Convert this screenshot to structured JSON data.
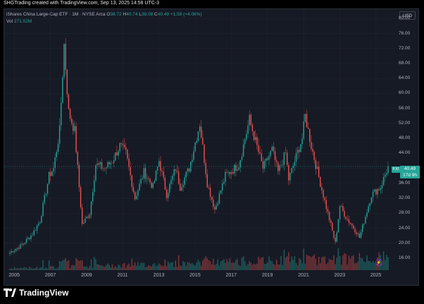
{
  "top_caption": "SHGTrading created with TradingView.com, Sep 13, 2025 14:58 UTC-3",
  "legend": {
    "symbol": "iShares China Large-Cap ETF · 1M · NYSE Arca",
    "open_label": "O",
    "open": "38.72",
    "high_label": "H",
    "high": "40.74",
    "low_label": "L",
    "low": "38.08",
    "close_label": "C",
    "close": "40.49",
    "change": "+1.58 (+4.06%)",
    "vol_label": "Vol",
    "vol": "271.02M"
  },
  "currency_button": "USD",
  "price_axis": [
    "80.00",
    "76.00",
    "72.00",
    "68.00",
    "64.00",
    "60.00",
    "56.00",
    "52.00",
    "48.00",
    "44.00",
    "40.00",
    "36.00",
    "32.00",
    "28.00",
    "24.00",
    "20.00",
    "16.00"
  ],
  "time_axis": [
    "2005",
    "2007",
    "2009",
    "2011",
    "2013",
    "2015",
    "2017",
    "2019",
    "2021",
    "2023",
    "2025"
  ],
  "last_price": "40.49",
  "last_price_countdown": "17d 9h",
  "symbol_badge": "FXI",
  "brand": "TradingView",
  "colors": {
    "up": "#26a69a",
    "down": "#ef5350",
    "background": "#161a25",
    "grid": "#232632"
  },
  "chart_data": {
    "type": "candlestick",
    "interval": "1M",
    "ylim": [
      12.8,
      82.5
    ],
    "x_range": [
      "2004-10",
      "2025-09"
    ],
    "grid": true,
    "anchors": [
      [
        "2004-10",
        17.5
      ],
      [
        "2005-06",
        19.5
      ],
      [
        "2006-01",
        22.5
      ],
      [
        "2006-06",
        26
      ],
      [
        "2006-12",
        38
      ],
      [
        "2007-03",
        40
      ],
      [
        "2007-07",
        50
      ],
      [
        "2007-10",
        73
      ],
      [
        "2008-01",
        55
      ],
      [
        "2008-05",
        50
      ],
      [
        "2008-10",
        25
      ],
      [
        "2009-03",
        28
      ],
      [
        "2009-07",
        41
      ],
      [
        "2010-01",
        40
      ],
      [
        "2010-06",
        42
      ],
      [
        "2010-11",
        46
      ],
      [
        "2011-03",
        44
      ],
      [
        "2011-09",
        32
      ],
      [
        "2012-03",
        39
      ],
      [
        "2012-09",
        35
      ],
      [
        "2013-01",
        42
      ],
      [
        "2013-06",
        33
      ],
      [
        "2013-12",
        40
      ],
      [
        "2014-03",
        35
      ],
      [
        "2014-09",
        40
      ],
      [
        "2015-04",
        52
      ],
      [
        "2015-09",
        36
      ],
      [
        "2016-02",
        29
      ],
      [
        "2016-09",
        38
      ],
      [
        "2017-06",
        41
      ],
      [
        "2018-01",
        53
      ],
      [
        "2018-10",
        40
      ],
      [
        "2019-04",
        45
      ],
      [
        "2019-08",
        39
      ],
      [
        "2020-01",
        44
      ],
      [
        "2020-03",
        37
      ],
      [
        "2020-12",
        48
      ],
      [
        "2021-02",
        54
      ],
      [
        "2021-06",
        46
      ],
      [
        "2021-12",
        36
      ],
      [
        "2022-10",
        20
      ],
      [
        "2023-01",
        30
      ],
      [
        "2023-05",
        27
      ],
      [
        "2023-12",
        23
      ],
      [
        "2024-02",
        21.5
      ],
      [
        "2024-10",
        33
      ],
      [
        "2025-04",
        35
      ],
      [
        "2025-09",
        40.49
      ]
    ]
  }
}
